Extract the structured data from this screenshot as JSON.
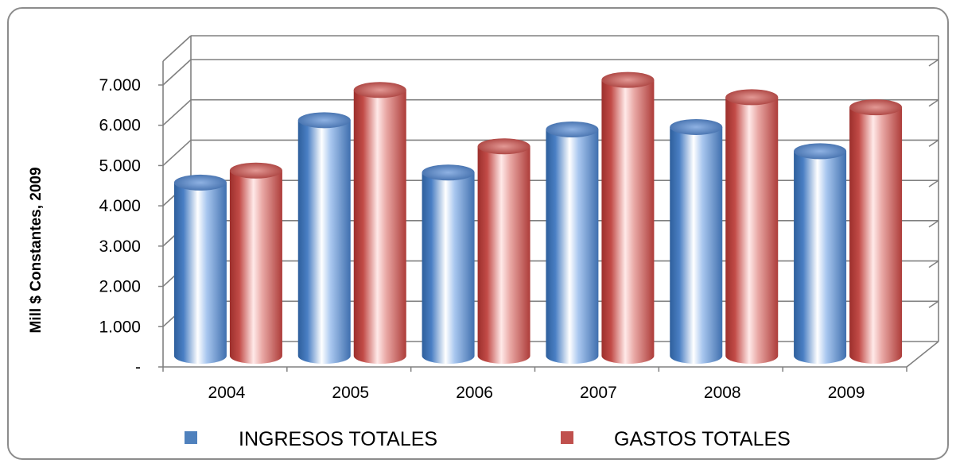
{
  "chart_data": {
    "type": "bar",
    "style": "3d-cylinder",
    "title": "",
    "xlabel": "",
    "ylabel": "Mill $ Constantes, 2009",
    "ylim": [
      0,
      7000
    ],
    "yticks": [
      "-",
      "1.000",
      "2.000",
      "3.000",
      "4.000",
      "5.000",
      "6.000",
      "7.000"
    ],
    "grid": true,
    "legend_position": "bottom",
    "categories": [
      "2004",
      "2005",
      "2006",
      "2007",
      "2008",
      "2009"
    ],
    "series": [
      {
        "name": "INGRESOS TOTALES",
        "color": "#4f81bd",
        "values": [
          4300,
          5850,
          4550,
          5620,
          5680,
          5080
        ]
      },
      {
        "name": "GASTOS TOTALES",
        "color": "#c0504d",
        "values": [
          4600,
          6600,
          5200,
          6850,
          6420,
          6170
        ]
      }
    ]
  }
}
